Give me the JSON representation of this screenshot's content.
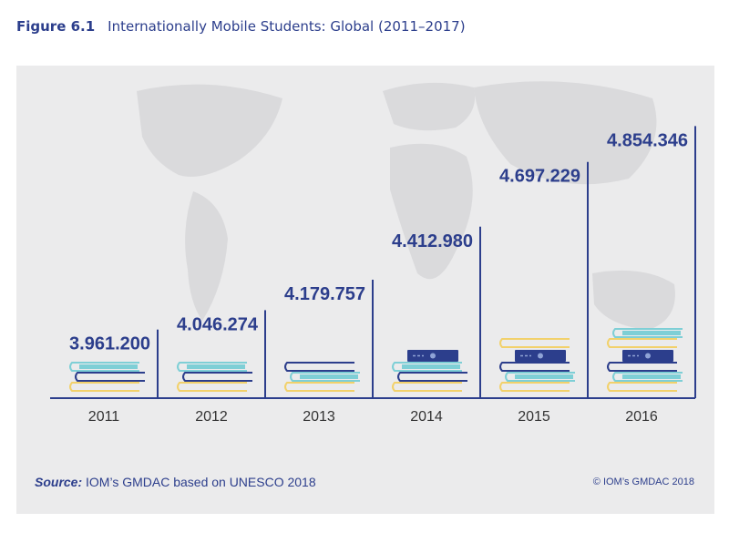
{
  "figure": {
    "label": "Figure 6.1",
    "title": "Internationally Mobile Students: Global (2011–2017)"
  },
  "footer": {
    "source_label": "Source:",
    "source_text": "IOM’s GMDAC based on UNESCO 2018",
    "copyright": "© IOM’s GMDAC 2018"
  },
  "colors": {
    "navy": "#2c3e8c",
    "teal": "#7ecfd6",
    "yellow": "#f2d16b",
    "background": "#ebebec",
    "map": "#d9d9db"
  },
  "chart_data": {
    "type": "bar",
    "categories": [
      "2011",
      "2012",
      "2013",
      "2014",
      "2015",
      "2016"
    ],
    "values": [
      3961200,
      4046274,
      4179757,
      4412980,
      4697229,
      4854346
    ],
    "value_labels": [
      "3.961.200",
      "4.046.274",
      "4.179.757",
      "4.412.980",
      "4.697.229",
      "4.854.346"
    ],
    "book_stacks": [
      [
        "yellow",
        "navy",
        "teal"
      ],
      [
        "yellow",
        "navy",
        "teal"
      ],
      [
        "yellow",
        "teal",
        "navy"
      ],
      [
        "yellow",
        "navy",
        "teal",
        "navy-box"
      ],
      [
        "yellow",
        "teal",
        "navy",
        "navy-box",
        "yellow"
      ],
      [
        "yellow",
        "teal",
        "navy",
        "navy-box",
        "yellow",
        "teal"
      ]
    ],
    "title": "",
    "xlabel": "",
    "ylabel": ""
  }
}
